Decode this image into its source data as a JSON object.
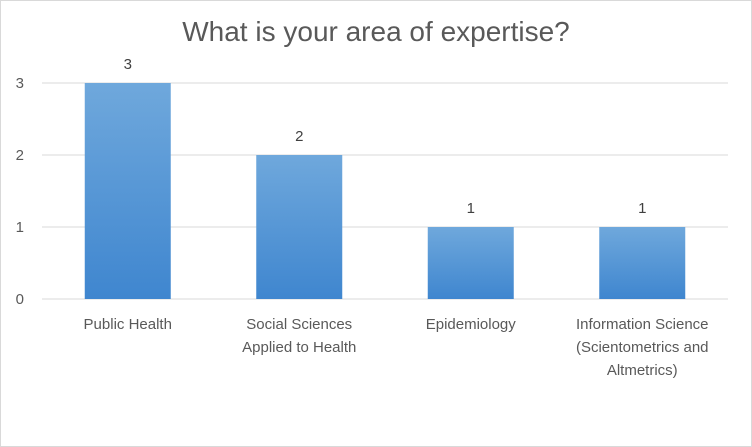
{
  "chart_data": {
    "type": "bar",
    "title": "What is your area of expertise?",
    "categories": [
      [
        "Public Health"
      ],
      [
        "Social Sciences",
        "Applied to Health"
      ],
      [
        "Epidemiology"
      ],
      [
        "Information Science",
        "(Scientometrics and",
        "Altmetrics)"
      ]
    ],
    "values": [
      3,
      2,
      1,
      1
    ],
    "ylim": [
      0,
      3
    ],
    "yticks": [
      0,
      1,
      2,
      3
    ],
    "xlabel": "",
    "ylabel": "",
    "grid": true,
    "legend": "none",
    "colors": {
      "bar_top": "#6fa8dc",
      "bar_bottom": "#3f86cf",
      "grid": "#d9d9d9",
      "text": "#595959"
    }
  }
}
